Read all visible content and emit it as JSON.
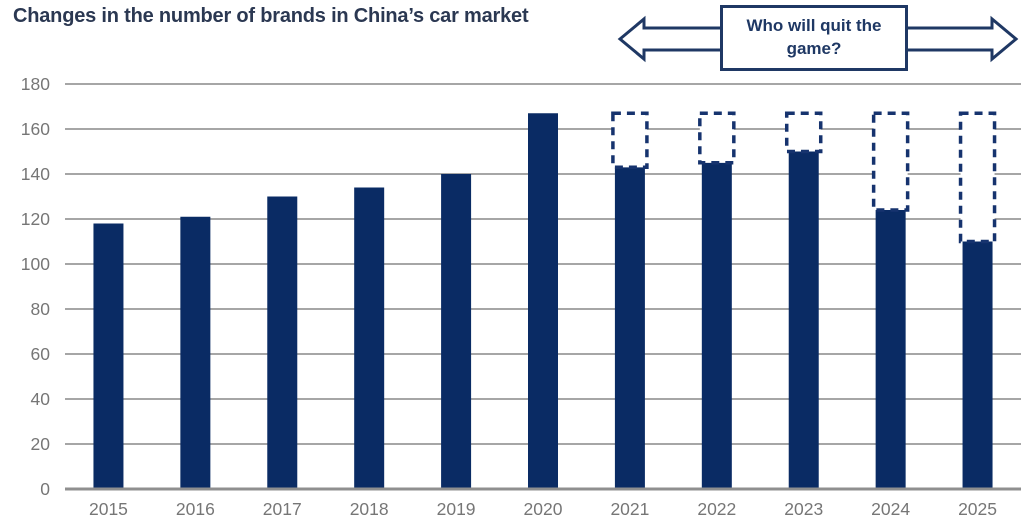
{
  "chart_data": {
    "type": "bar",
    "title": "Changes in the number of brands in China’s car market",
    "categories": [
      "2015",
      "2016",
      "2017",
      "2018",
      "2019",
      "2020",
      "2021",
      "2022",
      "2023",
      "2024",
      "2025"
    ],
    "values": [
      118,
      121,
      130,
      134,
      140,
      167,
      143,
      145,
      150,
      124,
      110
    ],
    "phantom_outline_top": 167,
    "phantom_outline_categories": [
      "2021",
      "2022",
      "2023",
      "2024",
      "2025"
    ],
    "ylim": [
      0,
      180
    ],
    "ytick_step": 20,
    "grid": true,
    "legend": "none",
    "xlabel": "",
    "ylabel": "",
    "colors": {
      "bar": "#0a2b64",
      "phantom_outline": "#16336e",
      "gridline": "#a6a6a6",
      "axis_line": "#8f8f8f",
      "tick_label": "#767676",
      "title": "#2b3852"
    }
  },
  "annotation": {
    "lines": [
      "Who will quit the",
      "game?"
    ],
    "full_text": "Who will quit the game?",
    "border_color": "#1f3864"
  }
}
